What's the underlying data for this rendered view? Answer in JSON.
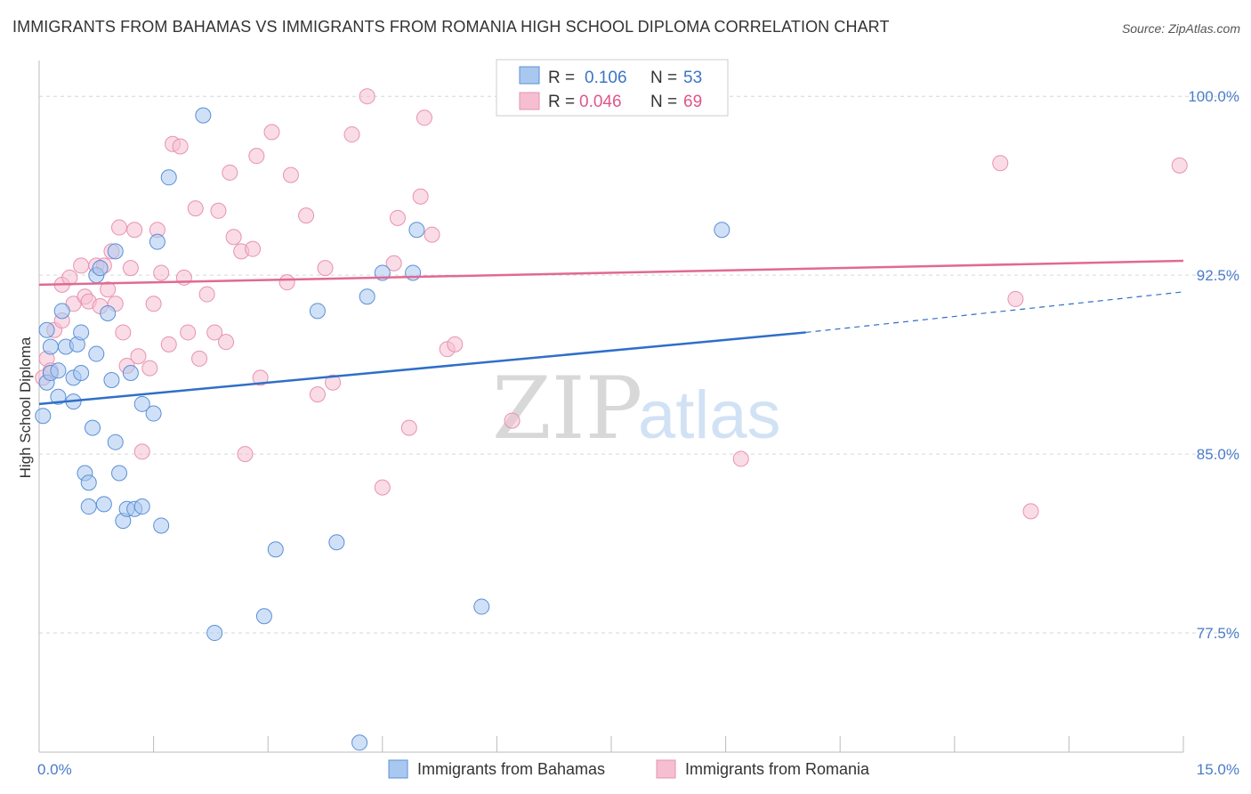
{
  "title": "IMMIGRANTS FROM BAHAMAS VS IMMIGRANTS FROM ROMANIA HIGH SCHOOL DIPLOMA CORRELATION CHART",
  "source": "Source: ZipAtlas.com",
  "watermark": {
    "zip": "ZIP",
    "atlas": "atlas"
  },
  "colors": {
    "bahamas_fill": "#a9c8f0",
    "bahamas_stroke": "#5b8fd6",
    "bahamas_line": "#2f6fc8",
    "romania_fill": "#f6bfd1",
    "romania_stroke": "#e792b2",
    "romania_line": "#e06a92"
  },
  "stats_box": {
    "rows": [
      {
        "r_label": "R =",
        "r_value": "0.106",
        "n_label": "N =",
        "n_value": "53"
      },
      {
        "r_label": "R =",
        "r_value": "0.046",
        "n_label": "N =",
        "n_value": "69"
      }
    ]
  },
  "chart_data": {
    "type": "scatter",
    "xlabel": "",
    "ylabel": "High School Diploma",
    "xlim": [
      0,
      15
    ],
    "ylim": [
      72.5,
      101.5
    ],
    "x_tick_labels": [
      {
        "value": 0,
        "label": "0.0%"
      },
      {
        "value": 15,
        "label": "15.0%"
      }
    ],
    "y_ticks": [
      {
        "value": 100,
        "label": "100.0%"
      },
      {
        "value": 92.5,
        "label": "92.5%"
      },
      {
        "value": 85,
        "label": "85.0%"
      },
      {
        "value": 77.5,
        "label": "77.5%"
      }
    ],
    "grid": "horizontal dashed",
    "legend_position": "bottom-center",
    "series": [
      {
        "name": "Immigrants from Bahamas",
        "color": "#5b8fd6",
        "trend": {
          "x": [
            0,
            10.05
          ],
          "y": [
            87.1,
            90.1
          ],
          "dashed_to": [
            15,
            91.8
          ]
        },
        "points": [
          [
            0.05,
            86.6
          ],
          [
            0.1,
            88.0
          ],
          [
            0.1,
            90.2
          ],
          [
            0.15,
            89.5
          ],
          [
            0.15,
            88.4
          ],
          [
            0.25,
            88.5
          ],
          [
            0.25,
            87.4
          ],
          [
            0.3,
            91.0
          ],
          [
            0.35,
            89.5
          ],
          [
            0.45,
            87.2
          ],
          [
            0.45,
            88.2
          ],
          [
            0.5,
            89.6
          ],
          [
            0.55,
            90.1
          ],
          [
            0.55,
            88.4
          ],
          [
            0.6,
            84.2
          ],
          [
            0.65,
            83.8
          ],
          [
            0.65,
            82.8
          ],
          [
            0.7,
            86.1
          ],
          [
            0.75,
            92.5
          ],
          [
            0.75,
            89.2
          ],
          [
            0.8,
            92.8
          ],
          [
            0.85,
            82.9
          ],
          [
            0.9,
            90.9
          ],
          [
            0.95,
            88.1
          ],
          [
            1.0,
            93.5
          ],
          [
            1.0,
            85.5
          ],
          [
            1.05,
            84.2
          ],
          [
            1.1,
            82.2
          ],
          [
            1.15,
            82.7
          ],
          [
            1.2,
            88.4
          ],
          [
            1.25,
            82.7
          ],
          [
            1.35,
            87.1
          ],
          [
            1.35,
            82.8
          ],
          [
            1.5,
            86.7
          ],
          [
            1.55,
            93.9
          ],
          [
            1.6,
            82.0
          ],
          [
            1.7,
            96.6
          ],
          [
            2.15,
            99.2
          ],
          [
            2.3,
            77.5
          ],
          [
            2.95,
            78.2
          ],
          [
            3.1,
            81.0
          ],
          [
            3.65,
            91.0
          ],
          [
            3.9,
            81.3
          ],
          [
            4.2,
            72.9
          ],
          [
            4.3,
            91.6
          ],
          [
            4.5,
            92.6
          ],
          [
            4.9,
            92.6
          ],
          [
            4.95,
            94.4
          ],
          [
            5.8,
            78.6
          ],
          [
            6.35,
            100.0
          ],
          [
            8.95,
            94.4
          ]
        ]
      },
      {
        "name": "Immigrants from Romania",
        "color": "#e792b2",
        "trend": {
          "x": [
            0,
            15
          ],
          "y": [
            92.1,
            93.1
          ]
        },
        "points": [
          [
            0.05,
            88.2
          ],
          [
            0.1,
            89.0
          ],
          [
            0.15,
            88.5
          ],
          [
            0.2,
            90.2
          ],
          [
            0.3,
            90.6
          ],
          [
            0.3,
            92.1
          ],
          [
            0.4,
            92.4
          ],
          [
            0.45,
            91.3
          ],
          [
            0.55,
            92.9
          ],
          [
            0.6,
            91.6
          ],
          [
            0.65,
            91.4
          ],
          [
            0.75,
            92.9
          ],
          [
            0.8,
            91.2
          ],
          [
            0.85,
            92.9
          ],
          [
            0.9,
            91.9
          ],
          [
            0.95,
            93.5
          ],
          [
            1.0,
            91.3
          ],
          [
            1.05,
            94.5
          ],
          [
            1.1,
            90.1
          ],
          [
            1.15,
            88.7
          ],
          [
            1.2,
            92.8
          ],
          [
            1.25,
            94.4
          ],
          [
            1.3,
            89.1
          ],
          [
            1.35,
            85.1
          ],
          [
            1.45,
            88.6
          ],
          [
            1.5,
            91.3
          ],
          [
            1.55,
            94.4
          ],
          [
            1.6,
            92.6
          ],
          [
            1.7,
            89.6
          ],
          [
            1.75,
            98.0
          ],
          [
            1.85,
            97.9
          ],
          [
            1.9,
            92.4
          ],
          [
            1.95,
            90.1
          ],
          [
            2.05,
            95.3
          ],
          [
            2.1,
            89.0
          ],
          [
            2.2,
            91.7
          ],
          [
            2.3,
            90.1
          ],
          [
            2.35,
            95.2
          ],
          [
            2.45,
            89.7
          ],
          [
            2.5,
            96.8
          ],
          [
            2.55,
            94.1
          ],
          [
            2.65,
            93.5
          ],
          [
            2.7,
            85.0
          ],
          [
            2.8,
            93.6
          ],
          [
            2.85,
            97.5
          ],
          [
            2.9,
            88.2
          ],
          [
            3.05,
            98.5
          ],
          [
            3.25,
            92.2
          ],
          [
            3.3,
            96.7
          ],
          [
            3.5,
            95.0
          ],
          [
            3.65,
            87.5
          ],
          [
            3.75,
            92.8
          ],
          [
            3.85,
            88.0
          ],
          [
            4.1,
            98.4
          ],
          [
            4.3,
            100.0
          ],
          [
            4.5,
            83.6
          ],
          [
            4.65,
            93.0
          ],
          [
            4.7,
            94.9
          ],
          [
            4.85,
            86.1
          ],
          [
            5.0,
            95.8
          ],
          [
            5.05,
            99.1
          ],
          [
            5.15,
            94.2
          ],
          [
            5.35,
            89.4
          ],
          [
            5.45,
            89.6
          ],
          [
            6.2,
            86.4
          ],
          [
            9.2,
            84.8
          ],
          [
            12.6,
            97.2
          ],
          [
            12.8,
            91.5
          ],
          [
            13.0,
            82.6
          ],
          [
            14.95,
            97.1
          ]
        ]
      }
    ]
  }
}
